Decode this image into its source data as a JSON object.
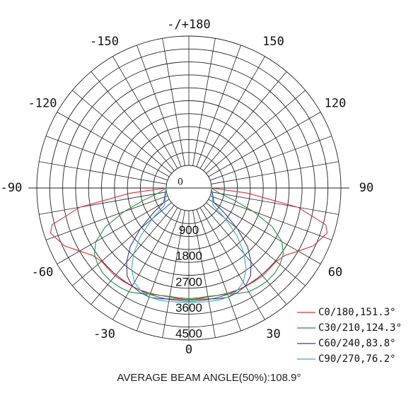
{
  "chart_data": {
    "type": "polar",
    "footer": "AVERAGE BEAM ANGLE(50%):108.9°",
    "radial_max": 4500,
    "ring_step": 450,
    "ring_labels": [
      "0",
      "900",
      "1800",
      "2700",
      "3600",
      "4500"
    ],
    "spoke_step_deg": 10,
    "angle_labels": [
      {
        "angle": 180,
        "text": "-/+180"
      },
      {
        "angle": 150,
        "text": "150"
      },
      {
        "angle": -150,
        "text": "-150"
      },
      {
        "angle": 120,
        "text": "120"
      },
      {
        "angle": -120,
        "text": "-120"
      },
      {
        "angle": 90,
        "text": "90"
      },
      {
        "angle": -90,
        "text": "-90"
      },
      {
        "angle": 60,
        "text": "60"
      },
      {
        "angle": -60,
        "text": "-60"
      },
      {
        "angle": 30,
        "text": "30"
      },
      {
        "angle": -30,
        "text": "-30"
      },
      {
        "angle": 0,
        "text": "0"
      }
    ],
    "series": [
      {
        "name": "C0/180,151.3°",
        "color": "#d8303a",
        "points": [
          [
            -90,
            0
          ],
          [
            -85,
            1270
          ],
          [
            -80,
            3060
          ],
          [
            -75,
            4140
          ],
          [
            -72,
            4270
          ],
          [
            -70,
            4180
          ],
          [
            -65,
            3980
          ],
          [
            -60,
            3600
          ],
          [
            -55,
            3300
          ],
          [
            -50,
            3180
          ],
          [
            -45,
            3180
          ],
          [
            -40,
            3200
          ],
          [
            -35,
            3180
          ],
          [
            -30,
            3160
          ],
          [
            -25,
            3140
          ],
          [
            -20,
            3110
          ],
          [
            -15,
            3080
          ],
          [
            -10,
            3060
          ],
          [
            -5,
            3080
          ],
          [
            0,
            3100
          ],
          [
            5,
            3080
          ],
          [
            10,
            3060
          ],
          [
            15,
            3080
          ],
          [
            20,
            3110
          ],
          [
            25,
            3140
          ],
          [
            30,
            3160
          ],
          [
            35,
            3180
          ],
          [
            40,
            3200
          ],
          [
            45,
            3180
          ],
          [
            50,
            3180
          ],
          [
            55,
            3300
          ],
          [
            60,
            3600
          ],
          [
            65,
            3980
          ],
          [
            70,
            4180
          ],
          [
            72,
            4270
          ],
          [
            75,
            4140
          ],
          [
            80,
            3060
          ],
          [
            85,
            1270
          ],
          [
            90,
            0
          ]
        ]
      },
      {
        "name": "C30/210,124.3°",
        "color": "#2a8e3a",
        "points": [
          [
            -90,
            0
          ],
          [
            -80,
            320
          ],
          [
            -75,
            830
          ],
          [
            -70,
            1600
          ],
          [
            -65,
            2420
          ],
          [
            -60,
            2950
          ],
          [
            -55,
            3220
          ],
          [
            -50,
            3350
          ],
          [
            -45,
            3420
          ],
          [
            -40,
            3440
          ],
          [
            -35,
            3420
          ],
          [
            -30,
            3380
          ],
          [
            -25,
            3260
          ],
          [
            -20,
            3140
          ],
          [
            -15,
            3080
          ],
          [
            -10,
            3040
          ],
          [
            -5,
            3050
          ],
          [
            0,
            3060
          ],
          [
            5,
            3050
          ],
          [
            10,
            3040
          ],
          [
            15,
            3080
          ],
          [
            20,
            3140
          ],
          [
            25,
            3260
          ],
          [
            30,
            3380
          ],
          [
            35,
            3420
          ],
          [
            40,
            3440
          ],
          [
            45,
            3420
          ],
          [
            50,
            3350
          ],
          [
            55,
            3220
          ],
          [
            60,
            2950
          ],
          [
            65,
            2420
          ],
          [
            70,
            1600
          ],
          [
            75,
            830
          ],
          [
            80,
            320
          ],
          [
            90,
            0
          ]
        ]
      },
      {
        "name": "C60/240,83.8°",
        "color": "#3a3a8c",
        "points": [
          [
            -90,
            0
          ],
          [
            -60,
            220
          ],
          [
            -55,
            720
          ],
          [
            -50,
            1420
          ],
          [
            -45,
            2100
          ],
          [
            -40,
            2580
          ],
          [
            -35,
            2950
          ],
          [
            -30,
            3150
          ],
          [
            -25,
            3220
          ],
          [
            -20,
            3250
          ],
          [
            -15,
            3200
          ],
          [
            -10,
            3130
          ],
          [
            -5,
            3100
          ],
          [
            0,
            3100
          ],
          [
            5,
            3100
          ],
          [
            10,
            3130
          ],
          [
            15,
            3200
          ],
          [
            20,
            3250
          ],
          [
            25,
            3220
          ],
          [
            30,
            3150
          ],
          [
            35,
            2950
          ],
          [
            40,
            2580
          ],
          [
            45,
            2100
          ],
          [
            50,
            1420
          ],
          [
            55,
            720
          ],
          [
            60,
            220
          ],
          [
            90,
            0
          ]
        ]
      },
      {
        "name": "C90/270,76.2°",
        "color": "#3aaec0",
        "points": [
          [
            -90,
            0
          ],
          [
            -55,
            240
          ],
          [
            -50,
            860
          ],
          [
            -45,
            1600
          ],
          [
            -40,
            2200
          ],
          [
            -35,
            2680
          ],
          [
            -30,
            3000
          ],
          [
            -25,
            3160
          ],
          [
            -20,
            3240
          ],
          [
            -15,
            3250
          ],
          [
            -10,
            3220
          ],
          [
            -5,
            3200
          ],
          [
            0,
            3200
          ],
          [
            5,
            3200
          ],
          [
            10,
            3220
          ],
          [
            15,
            3250
          ],
          [
            20,
            3240
          ],
          [
            25,
            3160
          ],
          [
            30,
            3000
          ],
          [
            35,
            2680
          ],
          [
            40,
            2200
          ],
          [
            45,
            1600
          ],
          [
            50,
            860
          ],
          [
            55,
            240
          ],
          [
            90,
            0
          ]
        ]
      }
    ]
  }
}
